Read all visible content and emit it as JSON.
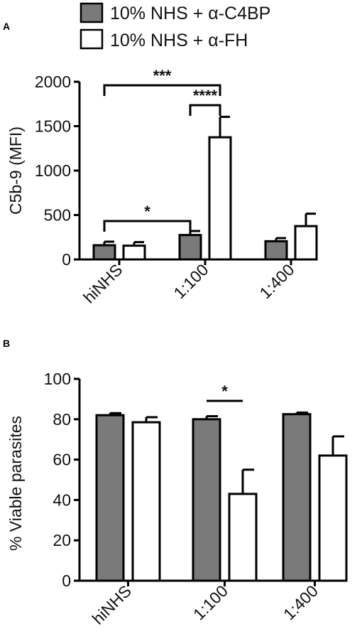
{
  "colors": {
    "gray_fill": "#7a7a7a",
    "white_fill": "#ffffff",
    "stroke": "#000000"
  },
  "legend": [
    {
      "label": "10% NHS + α-C4BP",
      "fill": "#7a7a7a"
    },
    {
      "label": "10% NHS + α-FH",
      "fill": "#ffffff"
    }
  ],
  "chart_data": [
    {
      "panel_label": "A",
      "type": "bar",
      "categories": [
        "hiNHS",
        "1:100",
        "1:400"
      ],
      "series": [
        {
          "name": "10% NHS + α-C4BP",
          "values": [
            160,
            275,
            205
          ],
          "errors": [
            40,
            45,
            35
          ]
        },
        {
          "name": "10% NHS + α-FH",
          "values": [
            155,
            1375,
            375
          ],
          "errors": [
            40,
            230,
            140
          ]
        }
      ],
      "ylabel": "C5b-9  (MFI)",
      "ylim": [
        0,
        2000
      ],
      "yticks": [
        0,
        500,
        1000,
        1500,
        2000
      ],
      "grid": false,
      "significance": [
        {
          "label": "***",
          "from": {
            "category": 0,
            "series": 0
          },
          "to": {
            "category": 1,
            "series": 1
          }
        },
        {
          "label": "****",
          "from": {
            "category": 1,
            "series": 0
          },
          "to": {
            "category": 1,
            "series": 1
          }
        },
        {
          "label": "*",
          "from": {
            "category": 0,
            "series": 0
          },
          "to": {
            "category": 1,
            "series": 0
          }
        }
      ]
    },
    {
      "panel_label": "B",
      "type": "bar",
      "categories": [
        "hiNHS",
        "1:100",
        "1:400"
      ],
      "series": [
        {
          "name": "10% NHS + α-C4BP",
          "values": [
            82,
            80,
            82.5
          ],
          "errors": [
            1,
            1.5,
            0.8
          ]
        },
        {
          "name": "10% NHS + α-FH",
          "values": [
            78.5,
            43,
            62
          ],
          "errors": [
            2.5,
            12,
            9.5
          ]
        }
      ],
      "ylabel": "% Viable parasites",
      "ylim": [
        0,
        100
      ],
      "yticks": [
        0,
        20,
        40,
        60,
        80,
        100
      ],
      "grid": false,
      "significance": [
        {
          "label": "*",
          "from": {
            "category": 1,
            "series": 0
          },
          "to": {
            "category": 1,
            "series": 1
          }
        }
      ]
    }
  ]
}
